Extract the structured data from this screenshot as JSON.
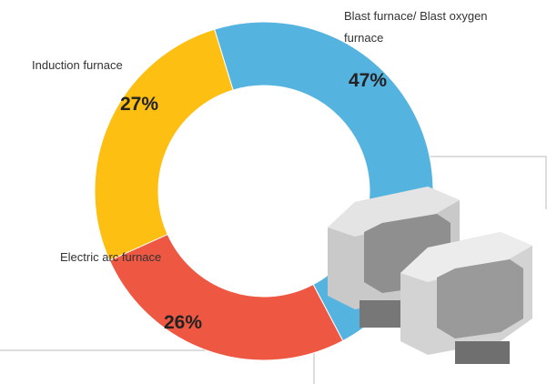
{
  "chart_data": {
    "type": "pie",
    "donut": true,
    "categories": [
      "Blast furnace/ Blast oxygen furnace",
      "Electric arc furnace",
      "Induction furnace"
    ],
    "values": [
      47,
      26,
      27
    ],
    "value_labels": [
      "47%",
      "26%",
      "27%"
    ],
    "colors": [
      "#55b3df",
      "#ee5842",
      "#fcbf12"
    ]
  }
}
